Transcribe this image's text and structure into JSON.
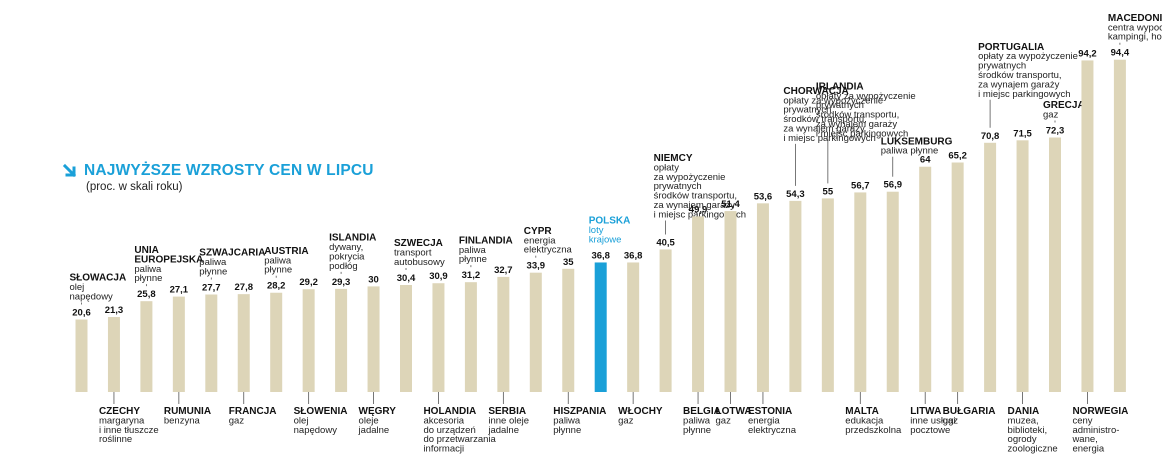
{
  "header": {
    "title": "NAJWYŻSZE WZROSTY CEN W LIPCU",
    "subtitle": "(proc. w skali roku)",
    "icon": "arrow-down-right-icon"
  },
  "colors": {
    "bar": "#ddd5b8",
    "highlight": "#1aa0d8",
    "title": "#1aa0d8"
  },
  "chart_data": {
    "type": "bar",
    "title": "NAJWYŻSZE WZROSTY CEN W LIPCU",
    "subtitle": "(proc. w skali roku)",
    "ylabel": "",
    "xlabel": "",
    "ylim": [
      0,
      100
    ],
    "grid": false,
    "bars": [
      {
        "value": 20.6,
        "label": "20,6",
        "country": "SŁOWACJA",
        "note": [
          "olej",
          "napędowy"
        ],
        "pos": "top"
      },
      {
        "value": 21.3,
        "label": "21,3",
        "country": "CZECHY",
        "note": [
          "margaryna",
          "i inne tłuszcze",
          "roślinne"
        ],
        "pos": "bottom"
      },
      {
        "value": 25.8,
        "label": "25,8",
        "country": [
          "UNIA",
          "EUROPEJSKA"
        ],
        "note": [
          "paliwa",
          "płynne"
        ],
        "pos": "top"
      },
      {
        "value": 27.1,
        "label": "27,1",
        "country": "RUMUNIA",
        "note": [
          "benzyna"
        ],
        "pos": "bottom"
      },
      {
        "value": 27.7,
        "label": "27,7",
        "country": "SZWAJCARIA",
        "note": [
          "paliwa",
          "płynne"
        ],
        "pos": "top"
      },
      {
        "value": 27.8,
        "label": "27,8",
        "country": "FRANCJA",
        "note": [
          "gaz"
        ],
        "pos": "bottom"
      },
      {
        "value": 28.2,
        "label": "28,2",
        "country": "AUSTRIA",
        "note": [
          "paliwa",
          "płynne"
        ],
        "pos": "top"
      },
      {
        "value": 29.2,
        "label": "29,2",
        "country": "SŁOWENIA",
        "note": [
          "olej",
          "napędowy"
        ],
        "pos": "bottom"
      },
      {
        "value": 29.3,
        "label": "29,3",
        "country": "ISLANDIA",
        "note": [
          "dywany,",
          "pokrycia",
          "podłóg"
        ],
        "pos": "top"
      },
      {
        "value": 30,
        "label": "30",
        "country": "WĘGRY",
        "note": [
          "oleje",
          "jadalne"
        ],
        "pos": "bottom"
      },
      {
        "value": 30.4,
        "label": "30,4",
        "country": "SZWECJA",
        "note": [
          "transport",
          "autobusowy"
        ],
        "pos": "top"
      },
      {
        "value": 30.9,
        "label": "30,9",
        "country": "HOLANDIA",
        "note": [
          "akcesoria",
          "do urządzeń",
          "do przetwarzania",
          "informacji"
        ],
        "pos": "bottom"
      },
      {
        "value": 31.2,
        "label": "31,2",
        "country": "FINLANDIA",
        "note": [
          "paliwa",
          "płynne"
        ],
        "pos": "top"
      },
      {
        "value": 32.7,
        "label": "32,7",
        "country": "SERBIA",
        "note": [
          "inne oleje",
          "jadalne"
        ],
        "pos": "bottom"
      },
      {
        "value": 33.9,
        "label": "33,9",
        "country": "CYPR",
        "note": [
          "energia",
          "elektryczna"
        ],
        "pos": "top"
      },
      {
        "value": 35,
        "label": "35",
        "country": "HISZPANIA",
        "note": [
          "paliwa",
          "płynne"
        ],
        "pos": "bottom"
      },
      {
        "value": 36.8,
        "label": "36,8",
        "country": "POLSKA",
        "note": [
          "loty",
          "krajowe"
        ],
        "pos": "top",
        "highlight": true
      },
      {
        "value": 36.8,
        "label": "36,8",
        "country": "WŁOCHY",
        "note": [
          "gaz"
        ],
        "pos": "bottom"
      },
      {
        "value": 40.5,
        "label": "40,5",
        "country": "NIEMCY",
        "note": [
          "opłaty",
          "za wypożyczenie",
          "prywatnych",
          "środków transportu,",
          "za wynajem garaży",
          "i miejsc parkingowych"
        ],
        "pos": "top"
      },
      {
        "value": 49.9,
        "label": "49,9",
        "country": "BELGIA",
        "note": [
          "paliwa",
          "płynne"
        ],
        "pos": "bottom"
      },
      {
        "value": 51.4,
        "label": "51,4",
        "country": "ŁOTWA",
        "note": [
          "gaz"
        ],
        "pos": "bottom"
      },
      {
        "value": 53.6,
        "label": "53,6",
        "country": "ESTONIA",
        "note": [
          "energia",
          "elektryczna"
        ],
        "pos": "bottom"
      },
      {
        "value": 54.3,
        "label": "54,3",
        "country": "CHORWACJA",
        "note": [
          "opłaty za wypożyczenie",
          "prywatnych",
          "środków transportu,",
          "za wynajem garaży",
          "i miejsc parkingowych"
        ],
        "pos": "top"
      },
      {
        "value": 55,
        "label": "55",
        "country": "IRLANDIA",
        "note": [
          "opłaty za wypożyczenie",
          "prywatnych",
          "środków transportu,",
          "za wynajem garaży",
          "i miejsc parkingowych"
        ],
        "pos": "top"
      },
      {
        "value": 56.7,
        "label": "56,7",
        "country": "MALTA",
        "note": [
          "edukacja",
          "przedszkolna"
        ],
        "pos": "bottom"
      },
      {
        "value": 56.9,
        "label": "56,9",
        "country": "LUKSEMBURG",
        "note": [
          "paliwa płynne"
        ],
        "pos": "top"
      },
      {
        "value": 64,
        "label": "64",
        "country": "LITWA",
        "note": [
          "inne usługi",
          "pocztowe"
        ],
        "pos": "bottom"
      },
      {
        "value": 65.2,
        "label": "65,2",
        "country": "BUŁGARIA",
        "note": [
          "gaz"
        ],
        "pos": "bottom"
      },
      {
        "value": 70.8,
        "label": "70,8",
        "country": "PORTUGALIA",
        "note": [
          "opłaty za wypożyczenie",
          "prywatnych",
          "środków transportu,",
          "za wynajem garaży",
          "i miejsc parkingowych"
        ],
        "pos": "top"
      },
      {
        "value": 71.5,
        "label": "71,5",
        "country": "DANIA",
        "note": [
          "muzea,",
          "biblioteki,",
          "ogrody",
          "zoologiczne"
        ],
        "pos": "bottom"
      },
      {
        "value": 72.3,
        "label": "72,3",
        "country": "GRECJA",
        "note": [
          "gaz"
        ],
        "pos": "top"
      },
      {
        "value": 94.2,
        "label": "94,2",
        "country": "NORWEGIA",
        "note": [
          "ceny",
          "administro-",
          "wane,",
          "energia"
        ],
        "pos": "bottom"
      },
      {
        "value": 94.4,
        "label": "94,4",
        "country": "MACEDONIA",
        "note": [
          "centra wypoczynkowe,",
          "kampingi, hostele"
        ],
        "pos": "top"
      }
    ]
  }
}
